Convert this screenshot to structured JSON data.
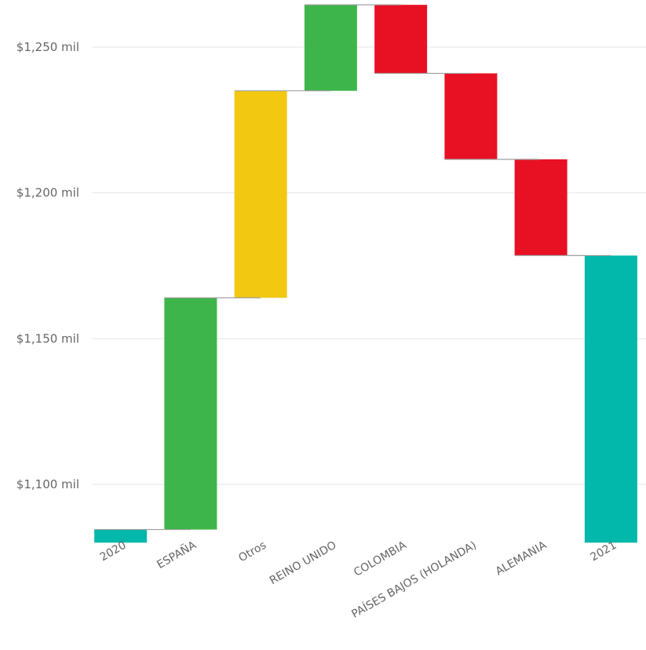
{
  "chart_data": {
    "type": "waterfall",
    "title": "",
    "xlabel": "",
    "ylabel": "",
    "ylim": [
      1080,
      1265
    ],
    "y_ticks": [
      {
        "value": 1100,
        "label": "$1,100 mil"
      },
      {
        "value": 1150,
        "label": "$1,150 mil"
      },
      {
        "value": 1200,
        "label": "$1,200 mil"
      },
      {
        "value": 1250,
        "label": "$1,250 mil"
      }
    ],
    "grid": true,
    "colors": {
      "total": "#01b8aa",
      "increase": "#3db54a",
      "other": "#f2c811",
      "decrease": "#e81123",
      "connector": "#a0a0a0",
      "grid": "#e6e6e6",
      "text": "#666666"
    },
    "bars": [
      {
        "label": "2020",
        "kind": "total",
        "start": 1080,
        "end": 1084.5
      },
      {
        "label": "ESPAÑA",
        "kind": "increase",
        "start": 1084.5,
        "end": 1164
      },
      {
        "label": "Otros",
        "kind": "other",
        "start": 1164,
        "end": 1235
      },
      {
        "label": "REINO UNIDO",
        "kind": "increase",
        "start": 1235,
        "end": 1264.5
      },
      {
        "label": "COLOMBIA",
        "kind": "decrease",
        "start": 1264.5,
        "end": 1241
      },
      {
        "label": "PAÍSES BAJOS (HOLANDA)",
        "kind": "decrease",
        "start": 1241,
        "end": 1211.5
      },
      {
        "label": "ALEMANIA",
        "kind": "decrease",
        "start": 1211.5,
        "end": 1178.5
      },
      {
        "label": "2021",
        "kind": "total",
        "start": 1080,
        "end": 1178.5
      }
    ]
  }
}
